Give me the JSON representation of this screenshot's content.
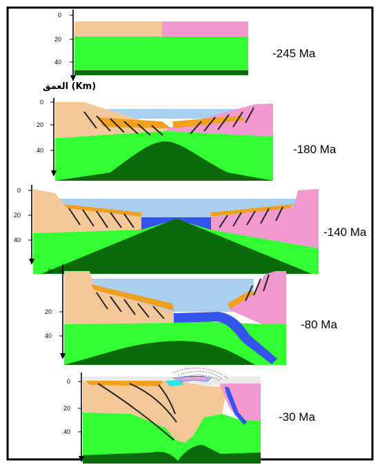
{
  "diagram": {
    "depth_axis_label": "العمق (Km)",
    "panels": [
      {
        "age": "-245 Ma",
        "depth_ticks": [
          "0",
          "20",
          "40"
        ]
      },
      {
        "age": "-180 Ma",
        "depth_ticks": [
          "0",
          "20",
          "40"
        ]
      },
      {
        "age": "-140 Ma",
        "depth_ticks": [
          "0",
          "20",
          "40"
        ]
      },
      {
        "age": "-80 Ma",
        "depth_ticks": [
          "0",
          "20",
          "40"
        ]
      },
      {
        "age": "-30 Ma",
        "depth_ticks": [
          "0",
          "20",
          "40"
        ]
      }
    ],
    "colors": {
      "continental_crust_a": "#f5c89a",
      "continental_crust_b": "#f299d0",
      "lithospheric_mantle": "#33ff33",
      "asthenosphere": "#0b6a0b",
      "ocean_water": "#aad0f0",
      "oceanic_crust": "#3355ee",
      "sediments": "#f2a020"
    }
  }
}
